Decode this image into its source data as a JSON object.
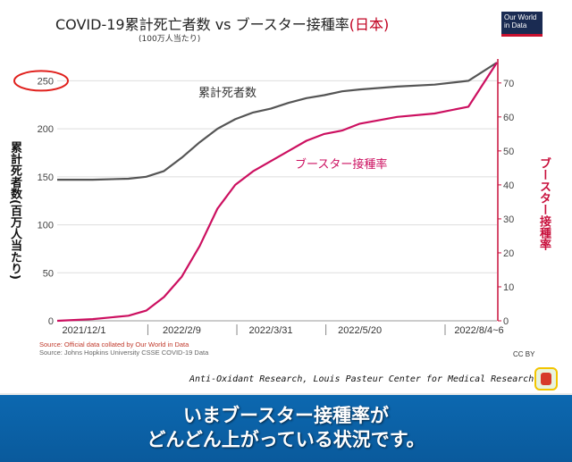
{
  "header": {
    "title_main": "COVID-19累計死亡者数 vs ブースター接種率",
    "title_country": "(日本)",
    "subtitle": "(100万人当たり)",
    "logo_text": "Our World in Data"
  },
  "axes": {
    "left_label": "累計死者数(百万人当たり)",
    "right_label": "ブースター接種率",
    "left_ticks": [
      "0",
      "50",
      "100",
      "150",
      "200",
      "250"
    ],
    "right_ticks": [
      "0",
      "10",
      "20",
      "30",
      "40",
      "50",
      "60",
      "70"
    ],
    "x_ticks": [
      "2021/12/1",
      "2022/2/9",
      "2022/3/31",
      "2022/5/20",
      "2022/8/4~6"
    ]
  },
  "chart_data": {
    "type": "line",
    "x": [
      "2021/12/1",
      "2021/12/21",
      "2022/1/10",
      "2022/1/20",
      "2022/1/30",
      "2022/2/9",
      "2022/2/19",
      "2022/3/1",
      "2022/3/11",
      "2022/3/21",
      "2022/3/31",
      "2022/4/10",
      "2022/4/20",
      "2022/4/30",
      "2022/5/10",
      "2022/5/20",
      "2022/6/10",
      "2022/7/1",
      "2022/7/20",
      "2022/8/5"
    ],
    "series": [
      {
        "name": "累計死者数",
        "axis": "left",
        "color": "#555555",
        "values": [
          147,
          147,
          148,
          150,
          156,
          170,
          186,
          200,
          210,
          217,
          221,
          227,
          232,
          235,
          239,
          241,
          244,
          246,
          250,
          269
        ]
      },
      {
        "name": "ブースター接種率",
        "axis": "right",
        "color": "#cc1060",
        "values": [
          0,
          0.5,
          1.5,
          3,
          7,
          13,
          22,
          33,
          40,
          44,
          47,
          50,
          53,
          55,
          56,
          58,
          60,
          61,
          63,
          76
        ]
      }
    ],
    "yleft_lim": [
      0,
      269
    ],
    "yright_lim": [
      0,
      76
    ],
    "grid": "horizontal",
    "annotations": [
      {
        "text": "累計死者数",
        "color": "#333333"
      },
      {
        "text": "ブースター接種率",
        "color": "#cc1060"
      }
    ],
    "highlight": {
      "text": "250",
      "color": "#e0201c"
    }
  },
  "footer": {
    "source_1": "Source: Official data collated by Our World in Data",
    "source_2": "Source: Johns Hopkins University CSSE COVID-19 Data",
    "license": "CC BY",
    "credit": "Anti-Oxidant Research, Louis Pasteur Center for Medical Research."
  },
  "caption": {
    "line_1": "いまブースター接種率が",
    "line_2": "どんどん上がっている状況です。"
  }
}
